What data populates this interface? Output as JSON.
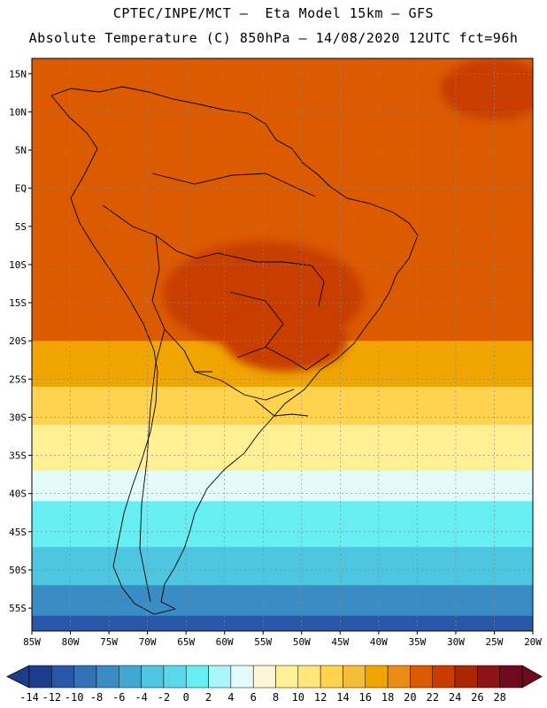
{
  "header": {
    "line1": "CPTEC/INPE/MCT –  Eta Model 15km – GFS",
    "line2": "Absolute Temperature (C) 850hPa – 14/08/2020 12UTC fct=96h"
  },
  "map": {
    "lon_range": [
      -85,
      -20
    ],
    "lat_range": [
      -58,
      17
    ],
    "lon_ticks": [
      {
        "value": -85,
        "label": "85W"
      },
      {
        "value": -80,
        "label": "80W"
      },
      {
        "value": -75,
        "label": "75W"
      },
      {
        "value": -70,
        "label": "70W"
      },
      {
        "value": -65,
        "label": "65W"
      },
      {
        "value": -60,
        "label": "60W"
      },
      {
        "value": -55,
        "label": "55W"
      },
      {
        "value": -50,
        "label": "50W"
      },
      {
        "value": -45,
        "label": "45W"
      },
      {
        "value": -40,
        "label": "40W"
      },
      {
        "value": -35,
        "label": "35W"
      },
      {
        "value": -30,
        "label": "30W"
      },
      {
        "value": -25,
        "label": "25W"
      },
      {
        "value": -20,
        "label": "20W"
      }
    ],
    "lat_ticks": [
      {
        "value": 15,
        "label": "15N"
      },
      {
        "value": 10,
        "label": "10N"
      },
      {
        "value": 5,
        "label": "5N"
      },
      {
        "value": 0,
        "label": "EQ"
      },
      {
        "value": -5,
        "label": "5S"
      },
      {
        "value": -10,
        "label": "10S"
      },
      {
        "value": -15,
        "label": "15S"
      },
      {
        "value": -20,
        "label": "20S"
      },
      {
        "value": -25,
        "label": "25S"
      },
      {
        "value": -30,
        "label": "30S"
      },
      {
        "value": -35,
        "label": "35S"
      },
      {
        "value": -40,
        "label": "40S"
      },
      {
        "value": -45,
        "label": "45S"
      },
      {
        "value": -50,
        "label": "50S"
      },
      {
        "value": -55,
        "label": "55S"
      }
    ]
  },
  "colorbar": {
    "labels": [
      "-14",
      "-12",
      "-10",
      "-8",
      "-6",
      "-4",
      "-2",
      "0",
      "2",
      "4",
      "6",
      "8",
      "10",
      "12",
      "14",
      "16",
      "18",
      "20",
      "22",
      "24",
      "26",
      "28"
    ],
    "under_color": "#1e3c8c",
    "over_color": "#6e0a1e",
    "colors": [
      "#1e3c8c",
      "#2a58a8",
      "#3272b6",
      "#3a8cc4",
      "#42a8d2",
      "#4ec6e0",
      "#5ad8ea",
      "#66eef2",
      "#aaf6fa",
      "#e2fafa",
      "#fff5d7",
      "#fff096",
      "#ffe678",
      "#ffd250",
      "#f5be37",
      "#f0a500",
      "#eb8c14",
      "#dc5a00",
      "#c83c00",
      "#aa2800",
      "#8c1414",
      "#6e0a1e"
    ]
  },
  "temperature_bands": [
    {
      "lat_from": 17,
      "lat_to": 8,
      "value": 20
    },
    {
      "lat_from": 8,
      "lat_to": -20,
      "value": 20
    },
    {
      "lat_from": -20,
      "lat_to": -26,
      "value": 16
    },
    {
      "lat_from": -26,
      "lat_to": -31,
      "value": 12
    },
    {
      "lat_from": -31,
      "lat_to": -37,
      "value": 8
    },
    {
      "lat_from": -37,
      "lat_to": -41,
      "value": 4
    },
    {
      "lat_from": -41,
      "lat_to": -47,
      "value": 0
    },
    {
      "lat_from": -47,
      "lat_to": -52,
      "value": -4
    },
    {
      "lat_from": -52,
      "lat_to": -56,
      "value": -8
    },
    {
      "lat_from": -56,
      "lat_to": -58,
      "value": -12
    }
  ],
  "warm_cores": [
    {
      "lon": -55,
      "lat": -14,
      "value": 22,
      "rlon": 13,
      "rlat": 7
    },
    {
      "lon": -52,
      "lat": -20,
      "value": 22,
      "rlon": 8,
      "rlat": 4
    },
    {
      "lon": -25,
      "lat": 13,
      "value": 22,
      "rlon": 7,
      "rlat": 4
    }
  ]
}
